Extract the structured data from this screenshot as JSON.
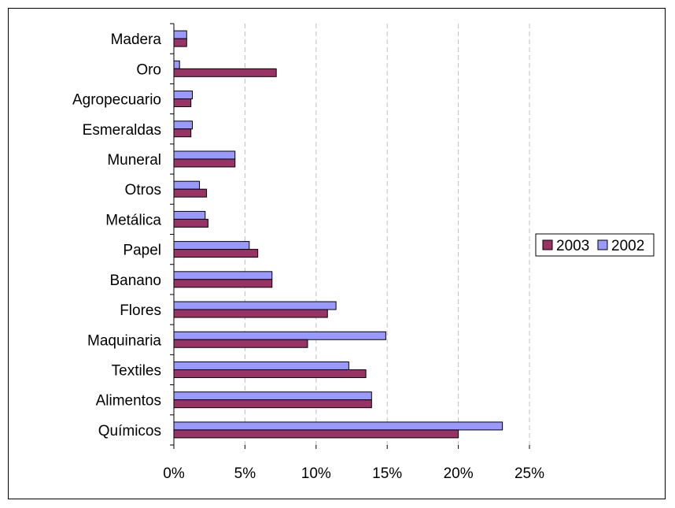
{
  "chart_data": {
    "type": "bar",
    "orientation": "horizontal",
    "categories": [
      "Madera",
      "Oro",
      "Agropecuario",
      "Esmeraldas",
      "Muneral",
      "Otros",
      "Metálica",
      "Papel",
      "Banano",
      "Flores",
      "Maquinaria",
      "Textiles",
      "Alimentos",
      "Químicos"
    ],
    "series": [
      {
        "name": "2003",
        "color": "#993366",
        "values": [
          0.9,
          7.2,
          1.2,
          1.2,
          4.3,
          2.3,
          2.4,
          5.9,
          6.9,
          10.8,
          9.4,
          13.5,
          13.9,
          20.0
        ]
      },
      {
        "name": "2002",
        "color": "#9999FF",
        "values": [
          0.9,
          0.4,
          1.3,
          1.3,
          4.3,
          1.8,
          2.2,
          5.3,
          6.9,
          11.4,
          14.9,
          12.3,
          13.9,
          23.1
        ]
      }
    ],
    "xlim": [
      0,
      25
    ],
    "xticks": [
      "0%",
      "5%",
      "10%",
      "15%",
      "20%",
      "25%"
    ],
    "grid": "vertical dashed",
    "legend_position": "right"
  }
}
